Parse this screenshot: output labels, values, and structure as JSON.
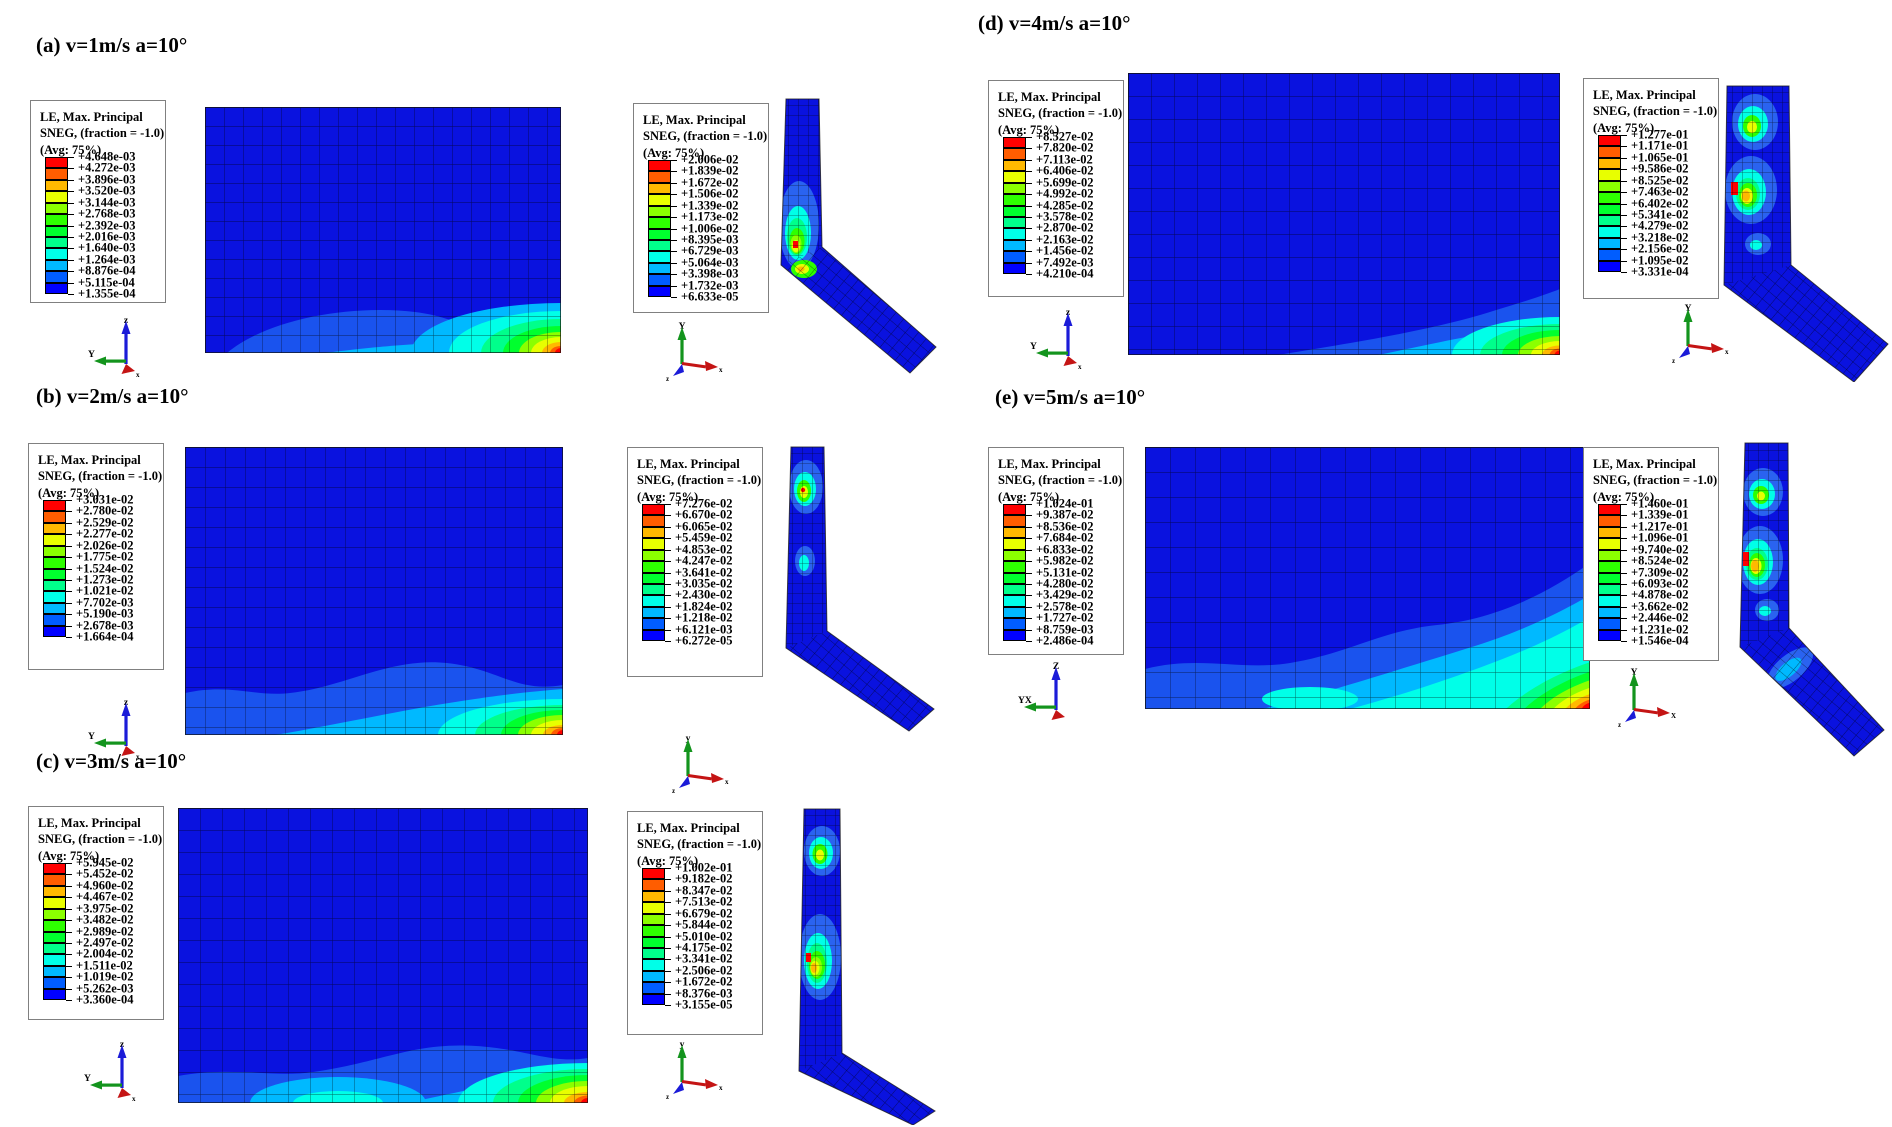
{
  "figure": {
    "description": "FEA contour plots of LE Max. Principal strain for wall and L-plate at impact velocities 1-5 m/s, angle 10 deg",
    "spectrum_top_to_bottom": [
      "#ff0000",
      "#ff5d00",
      "#ffb900",
      "#e8ff00",
      "#8bff00",
      "#2eff00",
      "#00ff2e",
      "#00ff8b",
      "#00ffe8",
      "#00b9ff",
      "#005dff",
      "#0000ff"
    ],
    "base_plate_color": "#0a12df",
    "panels": [
      {
        "id": "a",
        "title": "(a) v=1m/s a=10°",
        "legend_header": [
          "LE, Max. Principal",
          "SNEG, (fraction = -1.0)",
          "(Avg: 75%)"
        ],
        "legend1_values": [
          "+4.648e-03",
          "+4.272e-03",
          "+3.896e-03",
          "+3.520e-03",
          "+3.144e-03",
          "+2.768e-03",
          "+2.392e-03",
          "+2.016e-03",
          "+1.640e-03",
          "+1.264e-03",
          "+8.876e-04",
          "+5.115e-04",
          "+1.355e-04"
        ],
        "legend2_values": [
          "+2.006e-02",
          "+1.839e-02",
          "+1.672e-02",
          "+1.506e-02",
          "+1.339e-02",
          "+1.173e-02",
          "+1.006e-02",
          "+8.395e-03",
          "+6.729e-03",
          "+5.064e-03",
          "+3.398e-03",
          "+1.732e-03",
          "+6.633e-05"
        ],
        "main_triad": {
          "up": "z",
          "left": "Y",
          "origin": "x"
        },
        "side_triad": {
          "up": "Y",
          "right": "x",
          "stub": "z"
        }
      },
      {
        "id": "b",
        "title": "(b) v=2m/s a=10°",
        "legend_header": [
          "LE, Max. Principal",
          "SNEG, (fraction = -1.0)",
          "(Avg: 75%)"
        ],
        "legend1_values": [
          "+3.031e-02",
          "+2.780e-02",
          "+2.529e-02",
          "+2.277e-02",
          "+2.026e-02",
          "+1.775e-02",
          "+1.524e-02",
          "+1.273e-02",
          "+1.021e-02",
          "+7.702e-03",
          "+5.190e-03",
          "+2.678e-03",
          "+1.664e-04"
        ],
        "legend2_values": [
          "+7.276e-02",
          "+6.670e-02",
          "+6.065e-02",
          "+5.459e-02",
          "+4.853e-02",
          "+4.247e-02",
          "+3.641e-02",
          "+3.035e-02",
          "+2.430e-02",
          "+1.824e-02",
          "+1.218e-02",
          "+6.121e-03",
          "+6.272e-05"
        ],
        "main_triad": {
          "up": "z",
          "left": "Y",
          "origin": "x"
        },
        "side_triad": {
          "up": "y",
          "right": "x",
          "stub": "z"
        }
      },
      {
        "id": "c",
        "title": "(c) v=3m/s a=10°",
        "legend_header": [
          "LE, Max. Principal",
          "SNEG, (fraction = -1.0)",
          "(Avg: 75%)"
        ],
        "legend1_values": [
          "+5.945e-02",
          "+5.452e-02",
          "+4.960e-02",
          "+4.467e-02",
          "+3.975e-02",
          "+3.482e-02",
          "+2.989e-02",
          "+2.497e-02",
          "+2.004e-02",
          "+1.511e-02",
          "+1.019e-02",
          "+5.262e-03",
          "+3.360e-04"
        ],
        "legend2_values": [
          "+1.002e-01",
          "+9.182e-02",
          "+8.347e-02",
          "+7.513e-02",
          "+6.679e-02",
          "+5.844e-02",
          "+5.010e-02",
          "+4.175e-02",
          "+3.341e-02",
          "+2.506e-02",
          "+1.672e-02",
          "+8.376e-03",
          "+3.155e-05"
        ],
        "main_triad": {
          "up": "z",
          "left": "Y",
          "origin": "x"
        },
        "side_triad": {
          "up": "y",
          "right": "x",
          "stub": "z"
        }
      },
      {
        "id": "d",
        "title": "(d) v=4m/s a=10°",
        "legend_header": [
          "LE, Max. Principal",
          "SNEG, (fraction = -1.0)",
          "(Avg: 75%)"
        ],
        "legend1_values": [
          "+8.527e-02",
          "+7.820e-02",
          "+7.113e-02",
          "+6.406e-02",
          "+5.699e-02",
          "+4.992e-02",
          "+4.285e-02",
          "+3.578e-02",
          "+2.870e-02",
          "+2.163e-02",
          "+1.456e-02",
          "+7.492e-03",
          "+4.210e-04"
        ],
        "legend2_values": [
          "+1.277e-01",
          "+1.171e-01",
          "+1.065e-01",
          "+9.586e-02",
          "+8.525e-02",
          "+7.463e-02",
          "+6.402e-02",
          "+5.341e-02",
          "+4.279e-02",
          "+3.218e-02",
          "+2.156e-02",
          "+1.095e-02",
          "+3.331e-04"
        ],
        "main_triad": {
          "up": "z",
          "left": "Y",
          "origin": "x"
        },
        "side_triad": {
          "up": "Y",
          "right": "x",
          "stub": "z"
        }
      },
      {
        "id": "e",
        "title": "(e) v=5m/s a=10°",
        "legend_header": [
          "LE, Max. Principal",
          "SNEG, (fraction = -1.0)",
          "(Avg: 75%)"
        ],
        "legend1_values": [
          "+1.024e-01",
          "+9.387e-02",
          "+8.536e-02",
          "+7.684e-02",
          "+6.833e-02",
          "+5.982e-02",
          "+5.131e-02",
          "+4.280e-02",
          "+3.429e-02",
          "+2.578e-02",
          "+1.727e-02",
          "+8.759e-03",
          "+2.486e-04"
        ],
        "legend2_values": [
          "+1.460e-01",
          "+1.339e-01",
          "+1.217e-01",
          "+1.096e-01",
          "+9.740e-02",
          "+8.524e-02",
          "+7.309e-02",
          "+6.093e-02",
          "+4.878e-02",
          "+3.662e-02",
          "+2.446e-02",
          "+1.231e-02",
          "+1.546e-04"
        ],
        "main_triad": {
          "up": "Z",
          "left": "YX",
          "origin": ""
        },
        "side_triad": {
          "up": "Y",
          "right": "X",
          "stub": "z"
        }
      }
    ]
  }
}
